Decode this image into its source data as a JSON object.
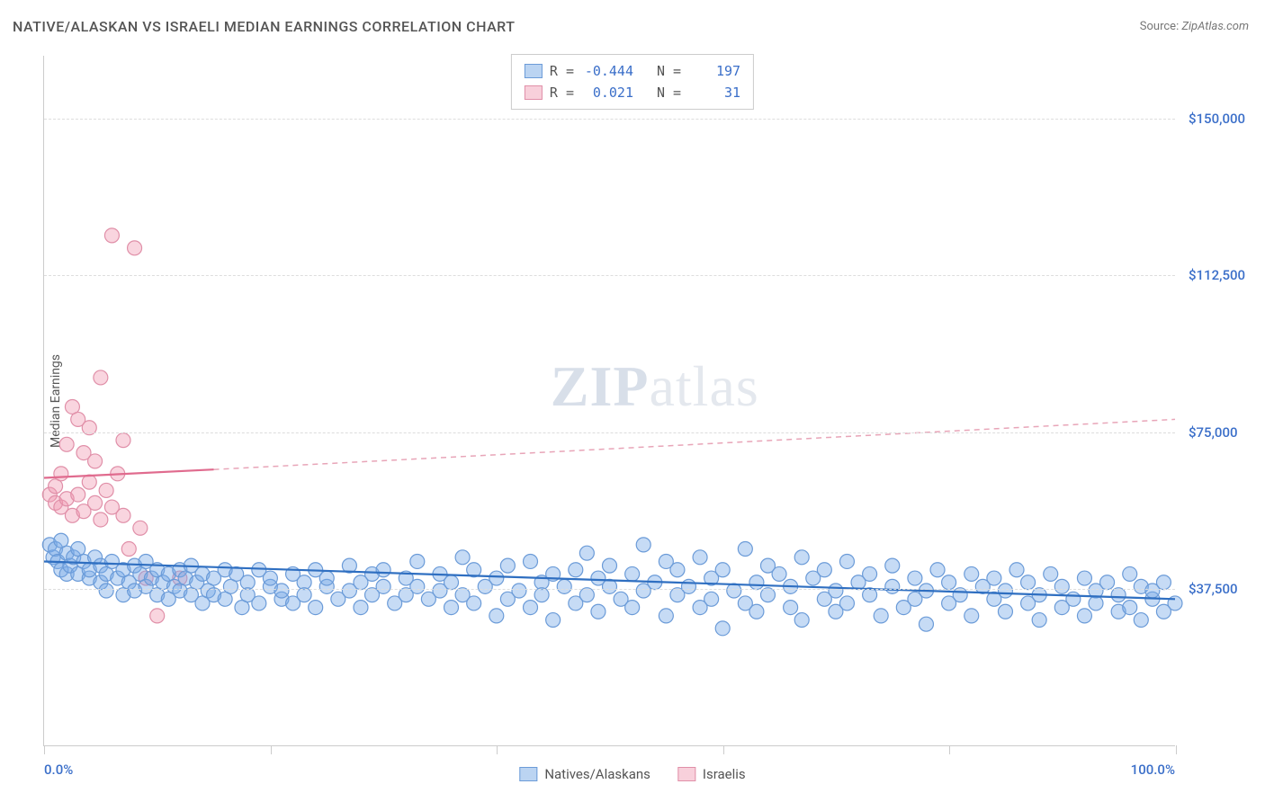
{
  "title": "NATIVE/ALASKAN VS ISRAELI MEDIAN EARNINGS CORRELATION CHART",
  "source_label": "Source:",
  "source_value": "ZipAtlas.com",
  "ylabel": "Median Earnings",
  "watermark_a": "ZIP",
  "watermark_b": "atlas",
  "chart": {
    "type": "scatter",
    "xlim": [
      0,
      100
    ],
    "ylim": [
      0,
      165000
    ],
    "yticks": [
      37500,
      75000,
      112500,
      150000
    ],
    "ytick_labels": [
      "$37,500",
      "$75,000",
      "$112,500",
      "$150,000"
    ],
    "xticks": [
      0,
      20,
      40,
      60,
      80,
      100
    ],
    "xaxis_left_label": "0.0%",
    "xaxis_right_label": "100.0%",
    "background_color": "#ffffff",
    "grid_color": "#dddddd",
    "axis_color": "#cccccc",
    "label_color": "#3b6fc9",
    "label_fontsize": 15,
    "title_color": "#555555",
    "title_fontsize": 16,
    "marker_radius": 8
  },
  "stats": {
    "rows": [
      {
        "swatch": "blue",
        "r_label": "R =",
        "r": "-0.444",
        "n_label": "N =",
        "n": "197"
      },
      {
        "swatch": "pink",
        "r_label": "R =",
        "r": "0.021",
        "n_label": "N =",
        "n": "31"
      }
    ]
  },
  "legend": {
    "items": [
      {
        "swatch": "blue",
        "label": "Natives/Alaskans"
      },
      {
        "swatch": "pink",
        "label": "Israelis"
      }
    ]
  },
  "series": {
    "blue": {
      "color_fill": "rgba(120,170,230,0.42)",
      "color_stroke": "#6b9bd8",
      "trend": {
        "x1": 0,
        "y1": 44000,
        "x2": 100,
        "y2": 35000,
        "color": "#2f6fc1"
      },
      "points": [
        [
          0.5,
          48000
        ],
        [
          0.8,
          45000
        ],
        [
          1,
          47000
        ],
        [
          1.2,
          44000
        ],
        [
          1.5,
          42000
        ],
        [
          1.5,
          49000
        ],
        [
          2,
          46000
        ],
        [
          2,
          41000
        ],
        [
          2.3,
          43000
        ],
        [
          2.6,
          45000
        ],
        [
          3,
          41000
        ],
        [
          3,
          47000
        ],
        [
          3.5,
          44000
        ],
        [
          4,
          40000
        ],
        [
          4,
          42000
        ],
        [
          4.5,
          45000
        ],
        [
          5,
          39000
        ],
        [
          5,
          43000
        ],
        [
          5.5,
          41000
        ],
        [
          5.5,
          37000
        ],
        [
          6,
          44000
        ],
        [
          6.5,
          40000
        ],
        [
          7,
          42000
        ],
        [
          7,
          36000
        ],
        [
          7.5,
          39000
        ],
        [
          8,
          43000
        ],
        [
          8,
          37000
        ],
        [
          8.5,
          41000
        ],
        [
          9,
          38000
        ],
        [
          9,
          44000
        ],
        [
          9.5,
          40000
        ],
        [
          10,
          36000
        ],
        [
          10,
          42000
        ],
        [
          10.5,
          39000
        ],
        [
          11,
          41000
        ],
        [
          11,
          35000
        ],
        [
          11.5,
          38000
        ],
        [
          12,
          42000
        ],
        [
          12,
          37000
        ],
        [
          12.5,
          40000
        ],
        [
          13,
          36000
        ],
        [
          13,
          43000
        ],
        [
          13.5,
          39000
        ],
        [
          14,
          41000
        ],
        [
          14,
          34000
        ],
        [
          14.5,
          37000
        ],
        [
          15,
          40000
        ],
        [
          15,
          36000
        ],
        [
          16,
          42000
        ],
        [
          16,
          35000
        ],
        [
          16.5,
          38000
        ],
        [
          17,
          41000
        ],
        [
          17.5,
          33000
        ],
        [
          18,
          39000
        ],
        [
          18,
          36000
        ],
        [
          19,
          42000
        ],
        [
          19,
          34000
        ],
        [
          20,
          38000
        ],
        [
          20,
          40000
        ],
        [
          21,
          35000
        ],
        [
          21,
          37000
        ],
        [
          22,
          41000
        ],
        [
          22,
          34000
        ],
        [
          23,
          39000
        ],
        [
          23,
          36000
        ],
        [
          24,
          42000
        ],
        [
          24,
          33000
        ],
        [
          25,
          38000
        ],
        [
          25,
          40000
        ],
        [
          26,
          35000
        ],
        [
          27,
          43000
        ],
        [
          27,
          37000
        ],
        [
          28,
          39000
        ],
        [
          28,
          33000
        ],
        [
          29,
          41000
        ],
        [
          29,
          36000
        ],
        [
          30,
          38000
        ],
        [
          30,
          42000
        ],
        [
          31,
          34000
        ],
        [
          32,
          40000
        ],
        [
          32,
          36000
        ],
        [
          33,
          38000
        ],
        [
          33,
          44000
        ],
        [
          34,
          35000
        ],
        [
          35,
          41000
        ],
        [
          35,
          37000
        ],
        [
          36,
          39000
        ],
        [
          36,
          33000
        ],
        [
          37,
          45000
        ],
        [
          37,
          36000
        ],
        [
          38,
          42000
        ],
        [
          38,
          34000
        ],
        [
          39,
          38000
        ],
        [
          40,
          40000
        ],
        [
          40,
          31000
        ],
        [
          41,
          43000
        ],
        [
          41,
          35000
        ],
        [
          42,
          37000
        ],
        [
          43,
          44000
        ],
        [
          43,
          33000
        ],
        [
          44,
          39000
        ],
        [
          44,
          36000
        ],
        [
          45,
          41000
        ],
        [
          45,
          30000
        ],
        [
          46,
          38000
        ],
        [
          47,
          42000
        ],
        [
          47,
          34000
        ],
        [
          48,
          46000
        ],
        [
          48,
          36000
        ],
        [
          49,
          40000
        ],
        [
          49,
          32000
        ],
        [
          50,
          38000
        ],
        [
          50,
          43000
        ],
        [
          51,
          35000
        ],
        [
          52,
          41000
        ],
        [
          52,
          33000
        ],
        [
          53,
          48000
        ],
        [
          53,
          37000
        ],
        [
          54,
          39000
        ],
        [
          55,
          44000
        ],
        [
          55,
          31000
        ],
        [
          56,
          36000
        ],
        [
          56,
          42000
        ],
        [
          57,
          38000
        ],
        [
          58,
          45000
        ],
        [
          58,
          33000
        ],
        [
          59,
          40000
        ],
        [
          59,
          35000
        ],
        [
          60,
          28000
        ],
        [
          60,
          42000
        ],
        [
          61,
          37000
        ],
        [
          62,
          47000
        ],
        [
          62,
          34000
        ],
        [
          63,
          39000
        ],
        [
          63,
          32000
        ],
        [
          64,
          43000
        ],
        [
          64,
          36000
        ],
        [
          65,
          41000
        ],
        [
          66,
          33000
        ],
        [
          66,
          38000
        ],
        [
          67,
          45000
        ],
        [
          67,
          30000
        ],
        [
          68,
          40000
        ],
        [
          69,
          35000
        ],
        [
          69,
          42000
        ],
        [
          70,
          37000
        ],
        [
          70,
          32000
        ],
        [
          71,
          44000
        ],
        [
          71,
          34000
        ],
        [
          72,
          39000
        ],
        [
          73,
          36000
        ],
        [
          73,
          41000
        ],
        [
          74,
          31000
        ],
        [
          75,
          38000
        ],
        [
          75,
          43000
        ],
        [
          76,
          33000
        ],
        [
          77,
          40000
        ],
        [
          77,
          35000
        ],
        [
          78,
          37000
        ],
        [
          78,
          29000
        ],
        [
          79,
          42000
        ],
        [
          80,
          34000
        ],
        [
          80,
          39000
        ],
        [
          81,
          36000
        ],
        [
          82,
          41000
        ],
        [
          82,
          31000
        ],
        [
          83,
          38000
        ],
        [
          84,
          35000
        ],
        [
          84,
          40000
        ],
        [
          85,
          32000
        ],
        [
          85,
          37000
        ],
        [
          86,
          42000
        ],
        [
          87,
          34000
        ],
        [
          87,
          39000
        ],
        [
          88,
          30000
        ],
        [
          88,
          36000
        ],
        [
          89,
          41000
        ],
        [
          90,
          33000
        ],
        [
          90,
          38000
        ],
        [
          91,
          35000
        ],
        [
          92,
          40000
        ],
        [
          92,
          31000
        ],
        [
          93,
          37000
        ],
        [
          93,
          34000
        ],
        [
          94,
          39000
        ],
        [
          95,
          32000
        ],
        [
          95,
          36000
        ],
        [
          96,
          41000
        ],
        [
          96,
          33000
        ],
        [
          97,
          38000
        ],
        [
          97,
          30000
        ],
        [
          98,
          35000
        ],
        [
          98,
          37000
        ],
        [
          99,
          32000
        ],
        [
          99,
          39000
        ],
        [
          100,
          34000
        ]
      ]
    },
    "pink": {
      "color_fill": "rgba(240,150,175,0.40)",
      "color_stroke": "#e08fa8",
      "trend_solid": {
        "x1": 0,
        "y1": 64000,
        "x2": 15,
        "y2": 66000,
        "color": "#e06b8e"
      },
      "trend_dash": {
        "x1": 15,
        "y1": 66000,
        "x2": 100,
        "y2": 78000,
        "color": "#e8a5b8"
      },
      "points": [
        [
          0.5,
          60000
        ],
        [
          1,
          62000
        ],
        [
          1,
          58000
        ],
        [
          1.5,
          57000
        ],
        [
          1.5,
          65000
        ],
        [
          2,
          59000
        ],
        [
          2,
          72000
        ],
        [
          2.5,
          81000
        ],
        [
          2.5,
          55000
        ],
        [
          3,
          78000
        ],
        [
          3,
          60000
        ],
        [
          3.5,
          56000
        ],
        [
          3.5,
          70000
        ],
        [
          4,
          63000
        ],
        [
          4,
          76000
        ],
        [
          4.5,
          58000
        ],
        [
          4.5,
          68000
        ],
        [
          5,
          88000
        ],
        [
          5,
          54000
        ],
        [
          5.5,
          61000
        ],
        [
          6,
          122000
        ],
        [
          6,
          57000
        ],
        [
          6.5,
          65000
        ],
        [
          7,
          55000
        ],
        [
          7,
          73000
        ],
        [
          7.5,
          47000
        ],
        [
          8,
          119000
        ],
        [
          8.5,
          52000
        ],
        [
          9,
          40000
        ],
        [
          10,
          31000
        ],
        [
          12,
          40000
        ]
      ]
    }
  }
}
